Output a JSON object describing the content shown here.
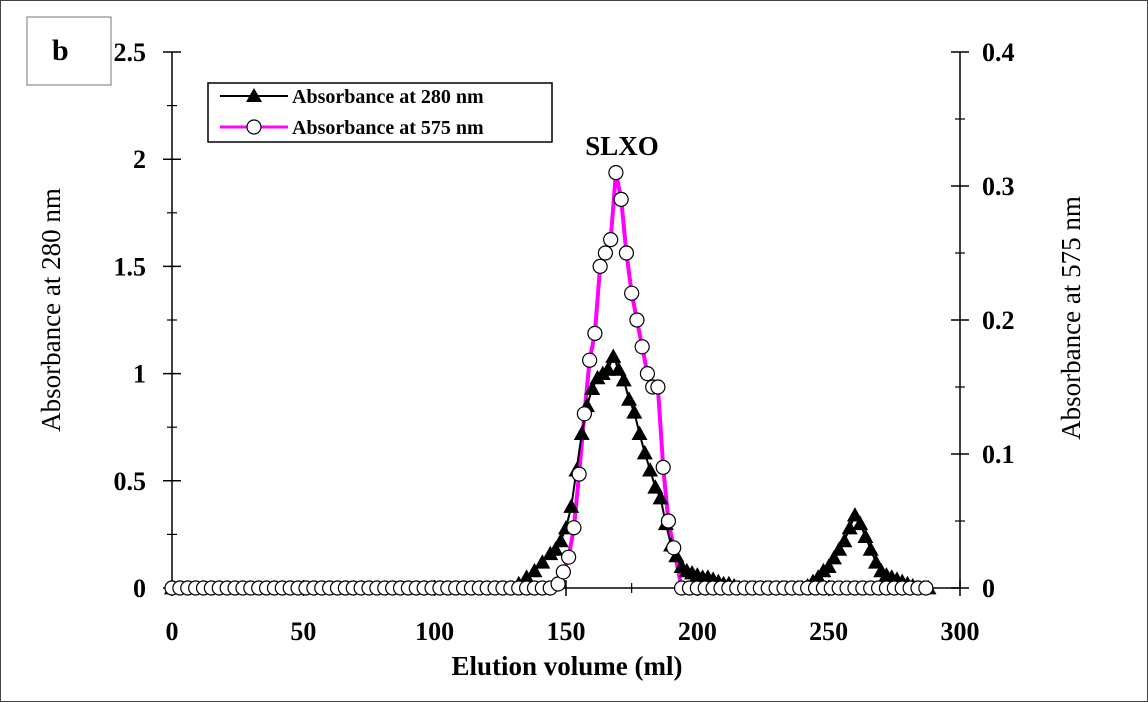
{
  "chart_data": {
    "type": "line",
    "panel_label": "b",
    "xlabel": "Elution volume (ml)",
    "ylabel_left": "Absorbance at 280 nm",
    "ylabel_right": "Absorbance at 575 nm",
    "annotation": "SLXO",
    "xlim": [
      0,
      300
    ],
    "ylim_left": [
      0,
      2.5
    ],
    "ylim_right": [
      0,
      0.4
    ],
    "x_ticks": [
      "0",
      "50",
      "100",
      "150",
      "200",
      "250",
      "300"
    ],
    "y_left_ticks": [
      "0",
      "0.5",
      "1",
      "1.5",
      "2",
      "2.5"
    ],
    "y_right_ticks": [
      "0",
      "0.1",
      "0.2",
      "0.3",
      "0.4"
    ],
    "legend_position": "top-left",
    "grid": false,
    "series": [
      {
        "name": "Absorbance at 280 nm",
        "axis": "left",
        "color": "#000000",
        "marker": "filled-triangle",
        "x": [
          0,
          3,
          6,
          9,
          12,
          15,
          18,
          21,
          24,
          27,
          30,
          33,
          36,
          39,
          42,
          45,
          48,
          51,
          54,
          57,
          60,
          63,
          66,
          69,
          72,
          75,
          78,
          81,
          84,
          87,
          90,
          93,
          96,
          99,
          102,
          105,
          108,
          111,
          114,
          117,
          120,
          123,
          126,
          129,
          132,
          135,
          138,
          141,
          144,
          146,
          148,
          150,
          152,
          154,
          156,
          158,
          160,
          162,
          164,
          166,
          168,
          170,
          172,
          174,
          176,
          178,
          180,
          182,
          184,
          186,
          188,
          190,
          192,
          194,
          196,
          198,
          200,
          202,
          204,
          206,
          208,
          210,
          212,
          214,
          216,
          218,
          220,
          222,
          224,
          226,
          228,
          230,
          232,
          234,
          236,
          238,
          240,
          242,
          244,
          246,
          248,
          250,
          252,
          254,
          256,
          258,
          260,
          262,
          264,
          266,
          268,
          270,
          272,
          274,
          276,
          278,
          280,
          282,
          284,
          286,
          288
        ],
        "y": [
          0,
          0,
          0,
          0,
          0,
          0,
          0,
          0,
          0,
          0,
          0,
          0,
          0,
          0,
          0,
          0,
          0,
          0,
          0,
          0,
          0,
          0,
          0,
          0,
          0,
          0,
          0,
          0,
          0,
          0,
          0,
          0,
          0,
          0,
          0,
          0,
          0,
          0,
          0,
          0,
          0,
          0,
          0,
          0,
          0.02,
          0.05,
          0.08,
          0.12,
          0.16,
          0.18,
          0.22,
          0.28,
          0.38,
          0.55,
          0.72,
          0.85,
          0.93,
          0.98,
          1.0,
          1.02,
          1.08,
          1.02,
          0.97,
          0.88,
          0.82,
          0.72,
          0.63,
          0.55,
          0.47,
          0.42,
          0.3,
          0.2,
          0.15,
          0.1,
          0.08,
          0.07,
          0.06,
          0.05,
          0.05,
          0.04,
          0.03,
          0.02,
          0.02,
          0.01,
          0,
          0,
          0,
          0,
          0,
          0,
          0,
          0,
          0,
          0,
          0,
          0,
          0,
          0.01,
          0.03,
          0.05,
          0.08,
          0.1,
          0.14,
          0.18,
          0.22,
          0.28,
          0.34,
          0.3,
          0.24,
          0.18,
          0.12,
          0.08,
          0.06,
          0.05,
          0.04,
          0.03,
          0.02,
          0.01,
          0,
          0,
          0
        ]
      },
      {
        "name": "Absorbance at 575 nm",
        "axis": "right",
        "color": "#ff00ff",
        "marker": "open-circle",
        "x": [
          0,
          3,
          6,
          9,
          12,
          15,
          18,
          21,
          24,
          27,
          30,
          33,
          36,
          39,
          42,
          45,
          48,
          51,
          54,
          57,
          60,
          63,
          66,
          69,
          72,
          75,
          78,
          81,
          84,
          87,
          90,
          93,
          96,
          99,
          102,
          105,
          108,
          111,
          114,
          117,
          120,
          123,
          126,
          129,
          132,
          135,
          138,
          141,
          144,
          147,
          149,
          151,
          153,
          155,
          157,
          159,
          161,
          163,
          165,
          167,
          169,
          171,
          173,
          175,
          177,
          179,
          181,
          183,
          185,
          187,
          189,
          191,
          194,
          197,
          200,
          203,
          206,
          209,
          212,
          215,
          218,
          221,
          224,
          227,
          230,
          233,
          236,
          239,
          242,
          245,
          248,
          251,
          254,
          257,
          260,
          263,
          266,
          269,
          272,
          275,
          278,
          281,
          284,
          287
        ],
        "y": [
          0,
          0,
          0,
          0,
          0,
          0,
          0,
          0,
          0,
          0,
          0,
          0,
          0,
          0,
          0,
          0,
          0,
          0,
          0,
          0,
          0,
          0,
          0,
          0,
          0,
          0,
          0,
          0,
          0,
          0,
          0,
          0,
          0,
          0,
          0,
          0,
          0,
          0,
          0,
          0,
          0,
          0,
          0,
          0,
          0,
          0,
          0,
          0,
          0,
          0.003,
          0.012,
          0.023,
          0.045,
          0.085,
          0.13,
          0.17,
          0.19,
          0.24,
          0.25,
          0.26,
          0.31,
          0.29,
          0.25,
          0.22,
          0.2,
          0.18,
          0.16,
          0.15,
          0.15,
          0.09,
          0.05,
          0.03,
          0,
          0,
          0,
          0,
          0,
          0,
          0,
          0,
          0,
          0,
          0,
          0,
          0,
          0,
          0,
          0,
          0,
          0,
          0,
          0,
          0,
          0,
          0,
          0,
          0,
          0,
          0,
          0,
          0,
          0,
          0,
          0
        ]
      }
    ]
  }
}
